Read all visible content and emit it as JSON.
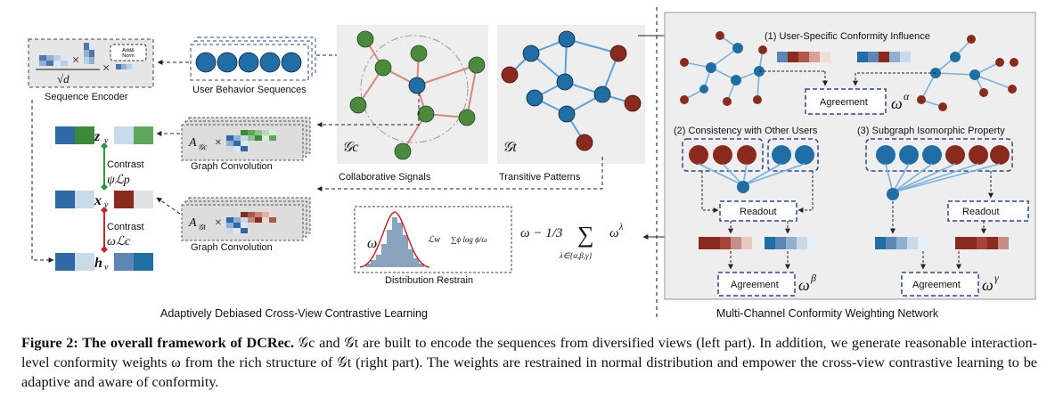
{
  "left": {
    "seq_encoder_label": "Sequence Encoder",
    "add_norm": "Add&\nNorm",
    "sqrt_d": "√d",
    "times": "×",
    "user_behavior_label": "User Behavior Sequences",
    "graph_conv_1": "Graph Convolution",
    "graph_conv_2": "Graph Convolution",
    "a_gc": "A",
    "a_gc_sub": "𝒢c",
    "a_gt": "A",
    "a_gt_sub": "𝒢t",
    "gc_label": "𝒢c",
    "gt_label": "𝒢t",
    "collab_label": "Collaborative Signals",
    "trans_label": "Transitive Patterns",
    "z_v": "z",
    "x_v": "x",
    "h_v": "h",
    "sub_v": "v",
    "contrast_1": "Contrast",
    "contrast_1_loss": "ψℒp",
    "contrast_2": "Contrast",
    "contrast_2_loss": "ωℒc",
    "dist_omega": "ω",
    "dist_loss": "ℒw",
    "dist_kl": "∑ϕ log ϕ/ω",
    "dist_label": "Distribution Restrain",
    "formula_left": "ω − 1/3",
    "formula_sum": "∑",
    "formula_sub": "λ∈{α,β,γ}",
    "formula_right": "ω",
    "formula_sup": "λ",
    "section_title": "Adaptively Debiased Cross-View Contrastive Learning"
  },
  "right": {
    "sec1": "(1) User-Specific Conformity Influence",
    "sec2": "(2) Consistency with Other Users",
    "sec3": "(3) Subgraph Isomorphic Property",
    "agreement_1": "Agreement",
    "agreement_2": "Agreement",
    "agreement_3": "Agreement",
    "readout_1": "Readout",
    "readout_2": "Readout",
    "omega_alpha": "ω",
    "sup_alpha": "α",
    "omega_beta": "ω",
    "sup_beta": "β",
    "omega_gamma": "ω",
    "sup_gamma": "γ",
    "section_title": "Multi-Channel Conformity Weighting Network"
  },
  "caption": {
    "head": "Figure 2: The overall framework of DCRec.",
    "text": " 𝒢c and 𝒢t are built to encode the sequences from diversified views (left part). In addition, we generate reasonable interaction-level conformity weights ω from the rich structure of 𝒢t (right part). The weights are restrained in normal distribution and empower the cross-view contrastive learning to be adaptive and aware of conformity."
  },
  "colors": {
    "blue_node": "#1f6ea6",
    "green_node": "#4a8a3a",
    "red_node": "#8a2a1e",
    "dashed_box": "#2a4a8a",
    "panel_grey": "#eeeeee",
    "contrast_green": "#2a9a3a",
    "contrast_red": "#c0282a"
  }
}
